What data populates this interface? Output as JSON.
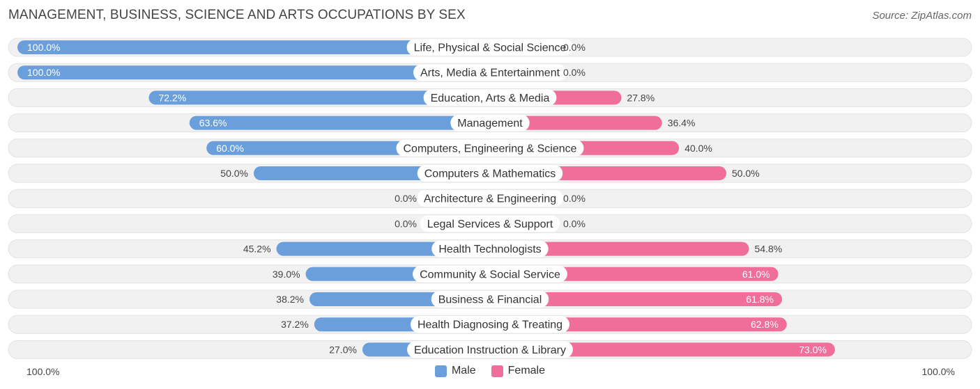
{
  "header": {
    "title": "MANAGEMENT, BUSINESS, SCIENCE AND ARTS OCCUPATIONS BY SEX",
    "source": "Source: ZipAtlas.com"
  },
  "colors": {
    "male": "#6a9fdc",
    "male_light": "#a9c8ec",
    "female": "#f06e9a",
    "female_light": "#f7a9c3",
    "row_bg": "#f1f1f1"
  },
  "chart_data": {
    "type": "bar",
    "orientation": "horizontal-diverging",
    "title": "MANAGEMENT, BUSINESS, SCIENCE AND ARTS OCCUPATIONS BY SEX",
    "categories": [
      "Life, Physical & Social Science",
      "Arts, Media & Entertainment",
      "Education, Arts & Media",
      "Management",
      "Computers, Engineering & Science",
      "Computers & Mathematics",
      "Architecture & Engineering",
      "Legal Services & Support",
      "Health Technologists",
      "Community & Social Service",
      "Business & Financial",
      "Health Diagnosing & Treating",
      "Education Instruction & Library"
    ],
    "series": [
      {
        "name": "Male",
        "values": [
          100.0,
          100.0,
          72.2,
          63.6,
          60.0,
          50.0,
          0.0,
          0.0,
          45.2,
          39.0,
          38.2,
          37.2,
          27.0
        ],
        "labels": [
          "100.0%",
          "100.0%",
          "72.2%",
          "63.6%",
          "60.0%",
          "50.0%",
          "0.0%",
          "0.0%",
          "45.2%",
          "39.0%",
          "38.2%",
          "37.2%",
          "27.0%"
        ]
      },
      {
        "name": "Female",
        "values": [
          0.0,
          0.0,
          27.8,
          36.4,
          40.0,
          50.0,
          0.0,
          0.0,
          54.8,
          61.0,
          61.8,
          62.8,
          73.0
        ],
        "labels": [
          "0.0%",
          "0.0%",
          "27.8%",
          "36.4%",
          "40.0%",
          "50.0%",
          "0.0%",
          "0.0%",
          "54.8%",
          "61.0%",
          "61.8%",
          "62.8%",
          "73.0%"
        ]
      }
    ],
    "xlim": [
      0,
      100
    ],
    "axis_left_label": "100.0%",
    "axis_right_label": "100.0%",
    "legend": [
      "Male",
      "Female"
    ],
    "legend_position": "bottom-center"
  }
}
